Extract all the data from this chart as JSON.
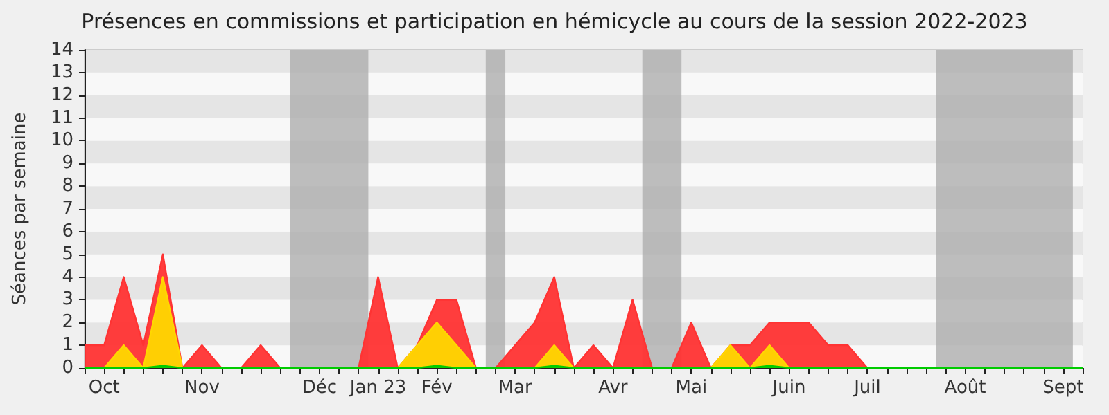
{
  "chart_data": {
    "type": "area",
    "title": "Présences en commissions et participation en hémicycle au cours de la session 2022-2023",
    "ylabel": "Séances par semaine",
    "categories": [
      null,
      "Oct",
      null,
      null,
      null,
      null,
      "Nov",
      null,
      null,
      null,
      null,
      null,
      "Déc",
      null,
      null,
      "Jan 23",
      null,
      null,
      "Fév",
      null,
      null,
      null,
      "Mar",
      null,
      null,
      null,
      null,
      "Avr",
      null,
      null,
      null,
      "Mai",
      null,
      null,
      null,
      null,
      "Juin",
      null,
      null,
      null,
      "Juil",
      null,
      null,
      null,
      null,
      "Août",
      null,
      null,
      null,
      null,
      "Sept",
      null
    ],
    "series": [
      {
        "color": "#ff3333",
        "values": [
          1,
          1,
          4,
          1,
          5,
          0,
          1,
          0,
          0,
          1,
          0,
          0,
          0,
          0,
          0,
          4,
          0,
          1,
          3,
          3,
          0,
          0,
          1,
          2,
          4,
          0,
          1,
          0,
          3,
          0,
          0,
          2,
          0,
          1,
          1,
          2,
          2,
          2,
          1,
          1,
          0,
          0,
          0,
          0,
          0,
          0,
          0,
          0,
          0,
          0,
          0,
          0
        ]
      },
      {
        "color": "#ffd700",
        "values": [
          0,
          0,
          1,
          0,
          4,
          0,
          0,
          0,
          0,
          0,
          0,
          0,
          0,
          0,
          0,
          0,
          0,
          1,
          2,
          1,
          0,
          0,
          0,
          0,
          1,
          0,
          0,
          0,
          0,
          0,
          0,
          0,
          0,
          1,
          0,
          1,
          0,
          0,
          0,
          0,
          0,
          0,
          0,
          0,
          0,
          0,
          0,
          0,
          0,
          0,
          0,
          0
        ]
      },
      {
        "color": "#00cc00",
        "values": [
          0,
          0,
          0,
          0,
          0.1,
          0,
          0,
          0,
          0,
          0,
          0,
          0,
          0,
          0,
          0,
          0,
          0,
          0,
          0.1,
          0,
          0,
          0,
          0,
          0,
          0.1,
          0,
          0,
          0,
          0,
          0,
          0,
          0,
          0,
          0,
          0,
          0.1,
          0,
          0,
          0,
          0,
          0,
          0,
          0,
          0,
          0,
          0,
          0,
          0,
          0,
          0,
          0,
          0
        ]
      }
    ],
    "ylim": [
      0,
      14
    ],
    "yticks": [
      0,
      1,
      2,
      3,
      4,
      5,
      6,
      7,
      8,
      9,
      10,
      11,
      12,
      13,
      14
    ]
  }
}
